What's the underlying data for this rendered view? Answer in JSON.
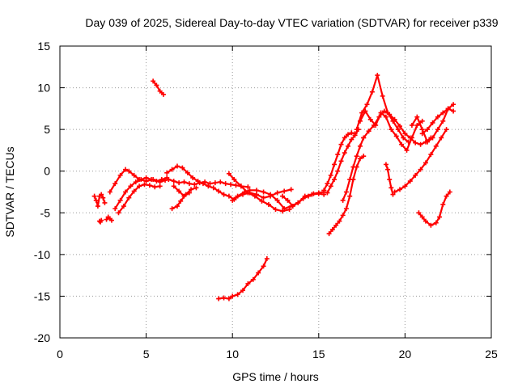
{
  "chart_data": {
    "type": "scatter",
    "title": "Day 039 of 2025, Sidereal Day-to-day VTEC variation (SDTVAR) for receiver p339",
    "xlabel": "GPS time / hours",
    "ylabel": "SDTVAR / TECUs",
    "xlim": [
      0,
      25
    ],
    "ylim": [
      -20,
      15
    ],
    "xticks": [
      "0",
      "5",
      "10",
      "15",
      "20",
      "25"
    ],
    "yticks": [
      "15",
      "10",
      "5",
      "0",
      "-5",
      "-10",
      "-15",
      "-20"
    ],
    "xtick_values": [
      0,
      5,
      10,
      15,
      20,
      25
    ],
    "ytick_values": [
      15,
      10,
      5,
      0,
      -5,
      -10,
      -15,
      -20
    ],
    "grid": true,
    "marker": "+",
    "color": "#ff0000",
    "series": [
      {
        "x": [
          2.0,
          2.1,
          2.2,
          2.3,
          2.4,
          2.5,
          2.6
        ],
        "y": [
          -3.0,
          -3.5,
          -4.2,
          -3.0,
          -2.8,
          -3.2,
          -3.8
        ]
      },
      {
        "x": [
          2.3,
          2.35,
          2.4
        ],
        "y": [
          -6.0,
          -6.1,
          -5.9
        ]
      },
      {
        "x": [
          2.7,
          2.8,
          2.9,
          3.0
        ],
        "y": [
          -5.8,
          -5.5,
          -5.7,
          -5.9
        ]
      },
      {
        "x": [
          2.9,
          3.2,
          3.5,
          3.8,
          4.0,
          4.3,
          4.6,
          5.0,
          5.4,
          5.8,
          6.1
        ],
        "y": [
          -2.5,
          -1.5,
          -0.5,
          0.2,
          0.0,
          -0.5,
          -1.0,
          -1.2,
          -1.0,
          -1.3,
          -1.1
        ]
      },
      {
        "x": [
          3.2,
          3.5,
          3.8,
          4.1,
          4.4,
          4.7,
          5.0,
          5.3,
          5.6,
          5.9,
          6.2
        ],
        "y": [
          -4.5,
          -3.5,
          -2.5,
          -1.8,
          -1.3,
          -1.0,
          -0.8,
          -1.0,
          -1.2,
          -1.0,
          -0.8
        ]
      },
      {
        "x": [
          3.4,
          3.7,
          4.0,
          4.3,
          4.6,
          4.9,
          5.2,
          5.5,
          5.8
        ],
        "y": [
          -5.0,
          -4.2,
          -3.2,
          -2.4,
          -1.8,
          -1.6,
          -1.7,
          -1.9,
          -1.8
        ]
      },
      {
        "x": [
          5.4,
          5.6,
          5.8,
          6.0
        ],
        "y": [
          10.8,
          10.3,
          9.6,
          9.2
        ]
      },
      {
        "x": [
          6.2,
          6.5,
          6.8,
          7.1,
          7.4,
          7.7,
          8.0,
          8.3,
          8.6,
          8.9,
          9.2,
          9.5,
          9.8,
          10.1
        ],
        "y": [
          -0.2,
          0.2,
          0.6,
          0.4,
          -0.2,
          -0.8,
          -1.2,
          -1.5,
          -1.8,
          -2.0,
          -2.4,
          -2.8,
          -3.0,
          -3.4
        ]
      },
      {
        "x": [
          6.3,
          6.6,
          6.9,
          7.2,
          7.5,
          7.8,
          8.1,
          8.4,
          8.7,
          9.0,
          9.3,
          9.6,
          9.9,
          10.2,
          10.5,
          10.9
        ],
        "y": [
          -1.0,
          -1.2,
          -1.4,
          -1.3,
          -1.5,
          -1.6,
          -1.4,
          -1.3,
          -1.5,
          -1.4,
          -1.3,
          -1.5,
          -1.6,
          -1.7,
          -1.8,
          -1.9
        ]
      },
      {
        "x": [
          6.5,
          6.8,
          7.0,
          7.3,
          7.6,
          7.9
        ],
        "y": [
          -4.5,
          -4.2,
          -3.6,
          -2.8,
          -2.2,
          -2.0
        ]
      },
      {
        "x": [
          6.6,
          6.9,
          7.2,
          7.5
        ],
        "y": [
          -1.8,
          -2.4,
          -3.0,
          -2.6
        ]
      },
      {
        "x": [
          9.2,
          9.5,
          9.8,
          10.0,
          10.3,
          10.6,
          10.9,
          11.2,
          11.5,
          11.8,
          12.0
        ],
        "y": [
          -15.3,
          -15.2,
          -15.3,
          -15.0,
          -14.8,
          -14.3,
          -13.5,
          -13.0,
          -12.2,
          -11.4,
          -10.5
        ]
      },
      {
        "x": [
          10.0,
          10.3,
          10.7,
          11.0,
          11.4,
          11.8,
          12.2,
          12.6,
          13.0,
          13.4,
          13.8,
          14.2,
          14.6,
          15.0,
          15.3
        ],
        "y": [
          -3.5,
          -3.0,
          -2.5,
          -2.3,
          -2.3,
          -2.5,
          -2.8,
          -3.5,
          -4.5,
          -4.2,
          -3.8,
          -3.0,
          -2.8,
          -2.7,
          -2.8
        ]
      },
      {
        "x": [
          10.2,
          10.6,
          11.0,
          11.4,
          11.8,
          12.2,
          12.6,
          13.0,
          13.4
        ],
        "y": [
          -3.2,
          -2.8,
          -2.6,
          -2.8,
          -3.2,
          -3.0,
          -2.6,
          -2.4,
          -2.2
        ]
      },
      {
        "x": [
          9.8,
          10.1,
          10.5,
          10.9,
          11.3,
          11.7,
          12.1,
          12.5,
          12.9,
          13.3
        ],
        "y": [
          -0.3,
          -1.0,
          -1.8,
          -2.6,
          -3.0,
          -3.6,
          -4.0,
          -4.6,
          -4.8,
          -4.6
        ]
      },
      {
        "x": [
          12.9,
          13.2,
          13.5,
          13.8,
          14.1,
          14.4,
          14.7,
          15.0,
          15.3
        ],
        "y": [
          -3.0,
          -3.5,
          -4.2,
          -3.8,
          -3.3,
          -3.0,
          -2.7,
          -2.6,
          -2.5
        ]
      },
      {
        "x": [
          15.3,
          15.5,
          15.7,
          15.9,
          16.1,
          16.3,
          16.5,
          16.7,
          16.9,
          17.1
        ],
        "y": [
          -2.3,
          -1.5,
          -0.5,
          0.8,
          2.0,
          3.2,
          4.0,
          4.4,
          4.6,
          4.5
        ]
      },
      {
        "x": [
          15.5,
          15.7,
          15.9,
          16.1,
          16.3,
          16.5,
          16.7,
          16.9,
          17.1,
          17.3
        ],
        "y": [
          -2.6,
          -1.8,
          -1.0,
          0.0,
          1.2,
          2.2,
          3.0,
          3.8,
          4.3,
          5.0
        ]
      },
      {
        "x": [
          15.6,
          15.8,
          16.0,
          16.2,
          16.4,
          16.6,
          16.8,
          17.0,
          17.2,
          17.4,
          17.6
        ],
        "y": [
          -7.5,
          -7.0,
          -6.5,
          -6.0,
          -5.3,
          -4.5,
          -3.0,
          -1.0,
          0.5,
          1.5,
          1.8
        ]
      },
      {
        "x": [
          16.4,
          16.6,
          16.8,
          17.0,
          17.2,
          17.4,
          17.6
        ],
        "y": [
          -3.5,
          -2.5,
          -1.0,
          0.5,
          1.8,
          3.0,
          4.0
        ]
      },
      {
        "x": [
          17.2,
          17.5,
          17.8,
          18.1,
          18.4,
          18.7,
          19.0,
          19.3,
          19.6,
          19.9,
          20.2
        ],
        "y": [
          5.0,
          7.0,
          8.0,
          9.5,
          11.5,
          9.0,
          7.0,
          6.0,
          5.0,
          4.0,
          3.5
        ]
      },
      {
        "x": [
          17.4,
          17.7,
          18.0,
          18.3,
          18.6,
          18.9,
          19.2,
          19.5,
          19.8,
          20.1,
          20.4,
          20.7,
          21.0
        ],
        "y": [
          6.0,
          7.2,
          6.2,
          5.5,
          7.0,
          6.5,
          5.0,
          4.2,
          3.2,
          2.5,
          4.0,
          5.5,
          6.0
        ]
      },
      {
        "x": [
          17.6,
          17.9,
          18.2,
          18.5,
          18.8,
          19.1,
          19.4,
          19.7,
          20.0,
          20.3,
          20.6,
          20.9,
          21.2,
          21.5
        ],
        "y": [
          4.0,
          4.8,
          5.5,
          6.5,
          7.2,
          6.8,
          6.2,
          5.4,
          4.5,
          4.0,
          3.4,
          3.2,
          3.5,
          4.0
        ]
      },
      {
        "x": [
          18.9,
          19.0,
          19.1,
          19.2,
          19.3
        ],
        "y": [
          0.8,
          0.2,
          -1.0,
          -2.0,
          -2.8
        ]
      },
      {
        "x": [
          19.4,
          19.7,
          20.0,
          20.3,
          20.6,
          20.9,
          21.2,
          21.5,
          21.8,
          22.1,
          22.4
        ],
        "y": [
          -2.5,
          -2.2,
          -1.8,
          -1.2,
          -0.5,
          0.2,
          1.0,
          2.0,
          3.0,
          4.0,
          5.0
        ]
      },
      {
        "x": [
          20.4,
          20.7,
          21.0,
          21.3,
          21.6,
          21.9,
          22.2,
          22.5,
          22.8
        ],
        "y": [
          5.5,
          6.5,
          5.0,
          3.5,
          4.0,
          5.0,
          6.0,
          7.5,
          8.0
        ]
      },
      {
        "x": [
          21.0,
          21.3,
          21.6,
          21.9,
          22.2,
          22.5,
          22.8
        ],
        "y": [
          4.5,
          5.0,
          5.8,
          6.5,
          7.0,
          7.5,
          7.2
        ]
      },
      {
        "x": [
          20.8,
          21.0,
          21.2,
          21.5,
          21.8,
          22.0,
          22.2,
          22.4,
          22.6
        ],
        "y": [
          -5.0,
          -5.5,
          -6.0,
          -6.5,
          -6.2,
          -5.5,
          -4.0,
          -3.0,
          -2.5
        ]
      }
    ]
  }
}
